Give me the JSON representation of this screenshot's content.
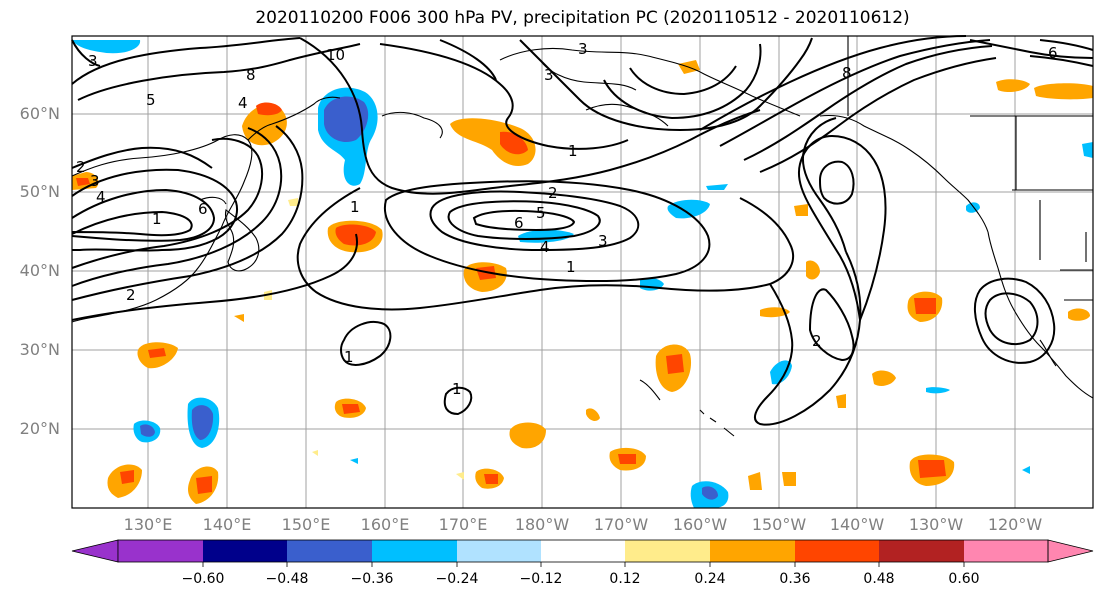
{
  "title": "2020110200 F006 300 hPa PV, precipitation PC (2020110512 - 2020110612)",
  "lat_labels": [
    "60°N",
    "50°N",
    "40°N",
    "30°N",
    "20°N"
  ],
  "lon_labels": [
    "130°E",
    "140°E",
    "150°E",
    "160°E",
    "170°E",
    "180°W",
    "170°W",
    "160°W",
    "150°W",
    "140°W",
    "130°W",
    "120°W"
  ],
  "colorbar": {
    "colors": [
      "#9932cc",
      "#00008b",
      "#3a5fcd",
      "#00bfff",
      "#b0e2ff",
      "#ffffff",
      "#ffec8b",
      "#ffa500",
      "#ff4500",
      "#b22222",
      "#ff86b0"
    ],
    "tick_labels": [
      "−0.60",
      "−0.48",
      "−0.36",
      "−0.24",
      "−0.12",
      "0.12",
      "0.24",
      "0.36",
      "0.48",
      "0.60"
    ]
  },
  "contour_labels": [
    "8",
    "5",
    "4",
    "10",
    "3",
    "2",
    "1",
    "6",
    "4",
    "5",
    "6",
    "3",
    "4",
    "1",
    "2",
    "2",
    "1",
    "1",
    "3",
    "3",
    "1",
    "8",
    "6",
    "2",
    "1",
    "3"
  ]
}
